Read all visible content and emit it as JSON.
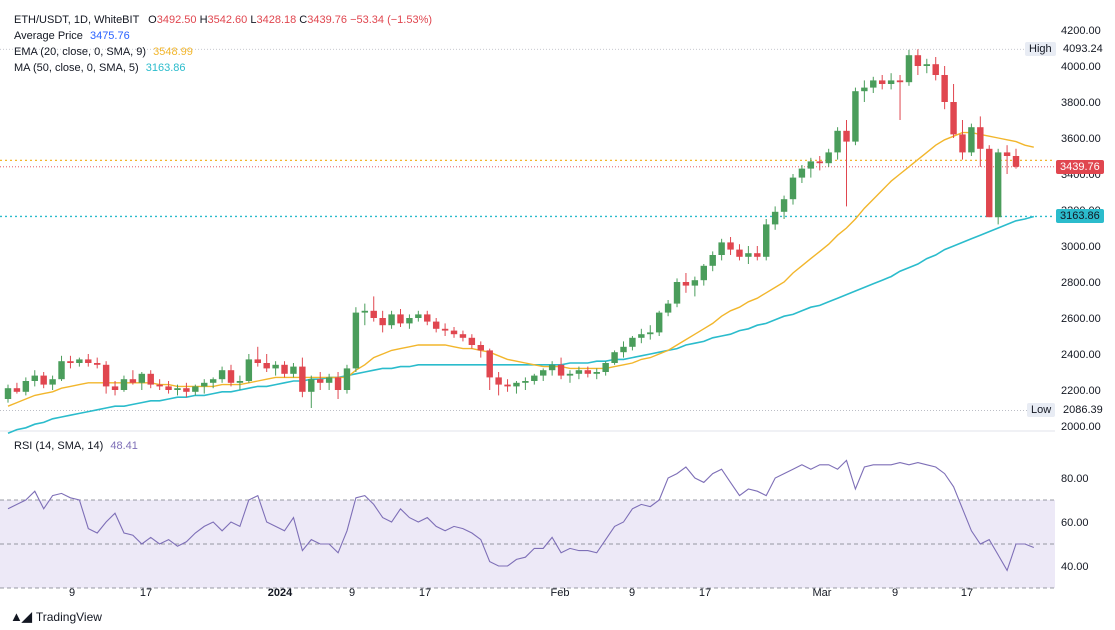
{
  "header": {
    "symbol": "ETH/USDT, 1D, WhiteBIT",
    "o_label": "O",
    "o": "3492.50",
    "h_label": "H",
    "h": "3542.60",
    "l_label": "L",
    "l": "3428.18",
    "c_label": "C",
    "c": "3439.76",
    "change": "−53.34 (−1.53%)",
    "avg_label": "Average Price",
    "avg": "3475.76",
    "ema_label": "EMA (20, close, 0, SMA, 9)",
    "ema": "3548.99",
    "ma_label": "MA (50, close, 0, SMA, 5)",
    "ma": "3163.86"
  },
  "rsi": {
    "label": "RSI (14, SMA, 14)",
    "value": "48.41"
  },
  "price_tags": {
    "high_label": "High",
    "high": "4093.24",
    "low_label": "Low",
    "low": "2086.39",
    "last": "3439.76",
    "ma": "3163.86"
  },
  "branding": {
    "name": "TradingView"
  },
  "colors": {
    "up": "#4a9d5b",
    "down": "#e0464f",
    "ema": "#f2b62c",
    "ma": "#2bbccc",
    "rsi": "#7e6fb7",
    "rsi_band": "#ede9f7",
    "avg_line": "#f2b62c"
  },
  "chart_data": [
    {
      "type": "candlestick",
      "title": "ETH/USDT, 1D, WhiteBIT",
      "yticks": [
        2000,
        2200,
        2400,
        2600,
        2800,
        3000,
        3200,
        3400,
        3600,
        3800,
        4000,
        4200
      ],
      "ylim": [
        2000,
        4200
      ],
      "xticks": [
        "9",
        "17",
        "2024",
        "9",
        "17",
        "Feb",
        "9",
        "17",
        "Mar",
        "9",
        "17"
      ],
      "candles": [
        [
          2150,
          2230,
          2130,
          2210
        ],
        [
          2210,
          2240,
          2180,
          2190
        ],
        [
          2190,
          2270,
          2170,
          2250
        ],
        [
          2250,
          2310,
          2220,
          2280
        ],
        [
          2280,
          2300,
          2210,
          2230
        ],
        [
          2230,
          2280,
          2200,
          2260
        ],
        [
          2260,
          2390,
          2250,
          2360
        ],
        [
          2360,
          2390,
          2320,
          2350
        ],
        [
          2350,
          2380,
          2330,
          2370
        ],
        [
          2370,
          2400,
          2330,
          2350
        ],
        [
          2350,
          2380,
          2320,
          2340
        ],
        [
          2340,
          2360,
          2180,
          2220
        ],
        [
          2220,
          2250,
          2170,
          2200
        ],
        [
          2200,
          2280,
          2190,
          2260
        ],
        [
          2260,
          2310,
          2230,
          2240
        ],
        [
          2240,
          2300,
          2200,
          2290
        ],
        [
          2290,
          2310,
          2210,
          2230
        ],
        [
          2230,
          2260,
          2200,
          2220
        ],
        [
          2220,
          2250,
          2180,
          2200
        ],
        [
          2200,
          2230,
          2170,
          2210
        ],
        [
          2210,
          2240,
          2160,
          2190
        ],
        [
          2190,
          2230,
          2170,
          2220
        ],
        [
          2220,
          2260,
          2180,
          2240
        ],
        [
          2240,
          2270,
          2210,
          2260
        ],
        [
          2260,
          2330,
          2240,
          2310
        ],
        [
          2310,
          2340,
          2220,
          2240
        ],
        [
          2240,
          2280,
          2200,
          2250
        ],
        [
          2250,
          2400,
          2240,
          2370
        ],
        [
          2370,
          2440,
          2330,
          2350
        ],
        [
          2350,
          2400,
          2300,
          2320
        ],
        [
          2320,
          2360,
          2280,
          2340
        ],
        [
          2340,
          2360,
          2270,
          2290
        ],
        [
          2290,
          2350,
          2270,
          2330
        ],
        [
          2330,
          2380,
          2160,
          2190
        ],
        [
          2190,
          2280,
          2100,
          2260
        ],
        [
          2260,
          2300,
          2200,
          2240
        ],
        [
          2240,
          2290,
          2200,
          2270
        ],
        [
          2270,
          2300,
          2150,
          2200
        ],
        [
          2200,
          2340,
          2180,
          2320
        ],
        [
          2320,
          2660,
          2300,
          2630
        ],
        [
          2630,
          2680,
          2560,
          2640
        ],
        [
          2640,
          2720,
          2580,
          2600
        ],
        [
          2600,
          2640,
          2520,
          2560
        ],
        [
          2560,
          2640,
          2540,
          2620
        ],
        [
          2620,
          2650,
          2550,
          2570
        ],
        [
          2570,
          2620,
          2540,
          2600
        ],
        [
          2600,
          2640,
          2580,
          2620
        ],
        [
          2620,
          2640,
          2560,
          2580
        ],
        [
          2580,
          2600,
          2520,
          2540
        ],
        [
          2540,
          2570,
          2500,
          2530
        ],
        [
          2530,
          2550,
          2490,
          2510
        ],
        [
          2510,
          2530,
          2470,
          2490
        ],
        [
          2490,
          2510,
          2430,
          2450
        ],
        [
          2450,
          2470,
          2380,
          2420
        ],
        [
          2420,
          2430,
          2200,
          2270
        ],
        [
          2270,
          2300,
          2170,
          2230
        ],
        [
          2230,
          2260,
          2190,
          2220
        ],
        [
          2220,
          2250,
          2180,
          2240
        ],
        [
          2240,
          2270,
          2200,
          2250
        ],
        [
          2250,
          2290,
          2230,
          2280
        ],
        [
          2280,
          2320,
          2250,
          2310
        ],
        [
          2310,
          2360,
          2280,
          2340
        ],
        [
          2340,
          2380,
          2260,
          2280
        ],
        [
          2280,
          2310,
          2240,
          2290
        ],
        [
          2290,
          2330,
          2260,
          2310
        ],
        [
          2310,
          2330,
          2270,
          2290
        ],
        [
          2290,
          2320,
          2260,
          2300
        ],
        [
          2300,
          2360,
          2280,
          2350
        ],
        [
          2350,
          2420,
          2340,
          2410
        ],
        [
          2410,
          2470,
          2380,
          2440
        ],
        [
          2440,
          2500,
          2420,
          2490
        ],
        [
          2490,
          2540,
          2460,
          2510
        ],
        [
          2510,
          2560,
          2480,
          2520
        ],
        [
          2520,
          2640,
          2500,
          2630
        ],
        [
          2630,
          2700,
          2610,
          2680
        ],
        [
          2680,
          2820,
          2660,
          2800
        ],
        [
          2800,
          2850,
          2740,
          2780
        ],
        [
          2780,
          2830,
          2720,
          2810
        ],
        [
          2810,
          2900,
          2780,
          2890
        ],
        [
          2890,
          2970,
          2860,
          2950
        ],
        [
          2950,
          3040,
          2920,
          3020
        ],
        [
          3020,
          3050,
          2950,
          2980
        ],
        [
          2980,
          3010,
          2920,
          2940
        ],
        [
          2940,
          3000,
          2900,
          2960
        ],
        [
          2960,
          3000,
          2920,
          2940
        ],
        [
          2940,
          3150,
          2920,
          3120
        ],
        [
          3120,
          3220,
          3090,
          3190
        ],
        [
          3190,
          3280,
          3150,
          3260
        ],
        [
          3260,
          3400,
          3230,
          3380
        ],
        [
          3380,
          3450,
          3350,
          3430
        ],
        [
          3430,
          3490,
          3380,
          3470
        ],
        [
          3470,
          3500,
          3420,
          3460
        ],
        [
          3460,
          3540,
          3440,
          3520
        ],
        [
          3520,
          3660,
          3480,
          3640
        ],
        [
          3640,
          3700,
          3220,
          3580
        ],
        [
          3580,
          3880,
          3560,
          3860
        ],
        [
          3860,
          3920,
          3800,
          3880
        ],
        [
          3880,
          3940,
          3850,
          3920
        ],
        [
          3920,
          3950,
          3870,
          3900
        ],
        [
          3900,
          3960,
          3870,
          3920
        ],
        [
          3920,
          3950,
          3700,
          3910
        ],
        [
          3910,
          4090,
          3890,
          4060
        ],
        [
          4060,
          4093,
          3950,
          4000
        ],
        [
          4000,
          4040,
          3960,
          4010
        ],
        [
          4010,
          4050,
          3920,
          3950
        ],
        [
          3950,
          4000,
          3760,
          3800
        ],
        [
          3800,
          3900,
          3600,
          3620
        ],
        [
          3620,
          3700,
          3480,
          3520
        ],
        [
          3520,
          3680,
          3500,
          3660
        ],
        [
          3660,
          3720,
          3440,
          3540
        ],
        [
          3540,
          3560,
          3160,
          3160
        ],
        [
          3160,
          3540,
          3120,
          3520
        ],
        [
          3520,
          3560,
          3400,
          3500
        ],
        [
          3500,
          3540,
          3430,
          3440
        ]
      ],
      "ema": [
        2110,
        2130,
        2150,
        2170,
        2180,
        2190,
        2210,
        2220,
        2230,
        2240,
        2240,
        2240,
        2240,
        2240,
        2240,
        2240,
        2240,
        2230,
        2230,
        2220,
        2220,
        2220,
        2220,
        2220,
        2230,
        2230,
        2230,
        2240,
        2250,
        2260,
        2270,
        2270,
        2270,
        2270,
        2270,
        2270,
        2270,
        2270,
        2270,
        2310,
        2340,
        2380,
        2400,
        2420,
        2430,
        2440,
        2450,
        2450,
        2450,
        2450,
        2440,
        2430,
        2430,
        2420,
        2410,
        2390,
        2370,
        2360,
        2350,
        2340,
        2330,
        2330,
        2330,
        2320,
        2320,
        2320,
        2320,
        2320,
        2330,
        2340,
        2350,
        2370,
        2380,
        2400,
        2420,
        2450,
        2480,
        2510,
        2540,
        2570,
        2610,
        2640,
        2660,
        2690,
        2710,
        2740,
        2770,
        2800,
        2850,
        2890,
        2930,
        2970,
        3010,
        3060,
        3100,
        3150,
        3210,
        3260,
        3310,
        3360,
        3400,
        3440,
        3480,
        3520,
        3560,
        3590,
        3610,
        3630,
        3630,
        3620,
        3610,
        3600,
        3590,
        3580,
        3560,
        3549
      ],
      "ma": [
        1960,
        1980,
        1990,
        2010,
        2020,
        2040,
        2050,
        2060,
        2070,
        2080,
        2090,
        2100,
        2110,
        2110,
        2120,
        2130,
        2140,
        2140,
        2150,
        2160,
        2160,
        2170,
        2170,
        2180,
        2190,
        2190,
        2200,
        2210,
        2220,
        2220,
        2230,
        2240,
        2250,
        2250,
        2260,
        2260,
        2270,
        2270,
        2280,
        2290,
        2300,
        2310,
        2320,
        2320,
        2330,
        2330,
        2340,
        2340,
        2340,
        2340,
        2340,
        2340,
        2340,
        2340,
        2340,
        2340,
        2340,
        2340,
        2340,
        2340,
        2340,
        2340,
        2340,
        2350,
        2350,
        2350,
        2360,
        2360,
        2370,
        2370,
        2380,
        2390,
        2400,
        2410,
        2420,
        2430,
        2450,
        2460,
        2470,
        2490,
        2500,
        2510,
        2530,
        2540,
        2560,
        2570,
        2590,
        2610,
        2620,
        2640,
        2660,
        2670,
        2690,
        2710,
        2730,
        2750,
        2770,
        2790,
        2810,
        2830,
        2860,
        2880,
        2900,
        2930,
        2950,
        2980,
        3000,
        3020,
        3040,
        3060,
        3080,
        3100,
        3120,
        3140,
        3150,
        3164
      ],
      "avg_price": 3475.76,
      "high": 4093.24,
      "low": 2086.39
    },
    {
      "type": "line",
      "title": "RSI (14, SMA, 14)",
      "yticks": [
        40,
        60,
        80
      ],
      "ylim": [
        30,
        90
      ],
      "band": [
        30,
        70
      ],
      "midline": 50,
      "values": [
        66,
        68,
        70,
        74,
        66,
        72,
        73,
        71,
        70,
        57,
        55,
        60,
        64,
        55,
        54,
        50,
        53,
        50,
        52,
        49,
        51,
        55,
        58,
        60,
        56,
        60,
        58,
        70,
        72,
        60,
        58,
        56,
        62,
        47,
        52,
        50,
        50,
        46,
        56,
        71,
        72,
        68,
        62,
        60,
        66,
        62,
        60,
        62,
        58,
        56,
        58,
        57,
        55,
        52,
        42,
        40,
        40,
        43,
        44,
        48,
        48,
        53,
        46,
        48,
        47,
        47,
        46,
        52,
        58,
        60,
        66,
        68,
        67,
        70,
        80,
        82,
        85,
        80,
        78,
        82,
        84,
        78,
        72,
        75,
        74,
        72,
        80,
        82,
        84,
        86,
        84,
        86,
        86,
        84,
        88,
        75,
        85,
        86,
        86,
        86,
        87,
        86,
        87,
        86,
        85,
        82,
        76,
        66,
        56,
        50,
        52,
        45,
        38,
        50,
        50,
        48.41
      ]
    }
  ]
}
